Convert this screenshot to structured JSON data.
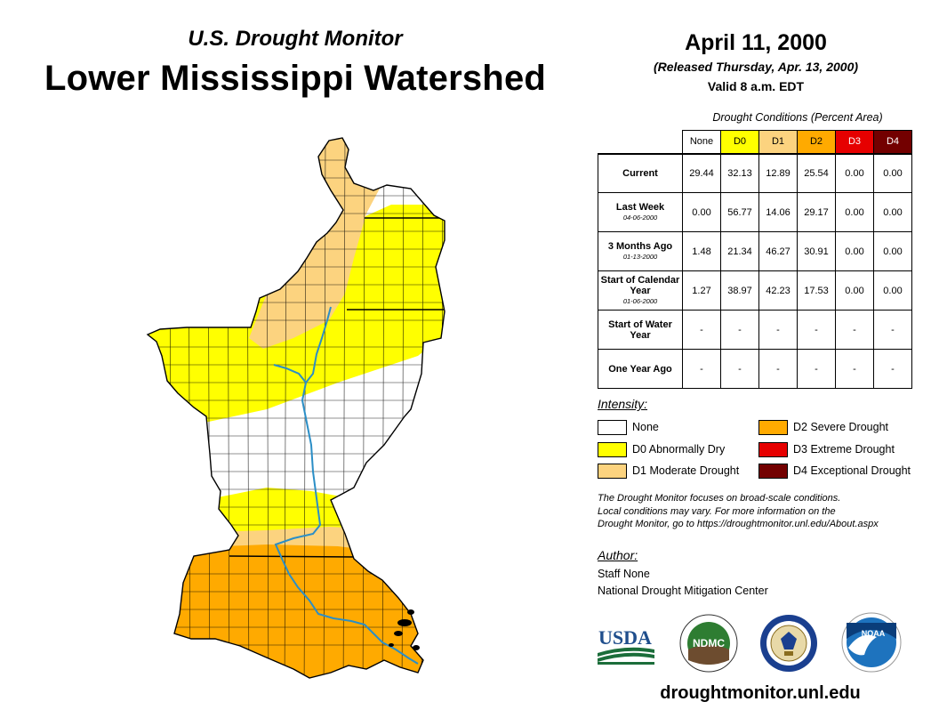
{
  "header": {
    "subtitle": "U.S. Drought Monitor",
    "title": "Lower Mississippi Watershed",
    "date": "April 11, 2000",
    "released": "(Released Thursday, Apr. 13, 2000)",
    "valid": "Valid 8 a.m. EDT"
  },
  "table": {
    "title": "Drought Conditions (Percent Area)",
    "columns": [
      {
        "label": "None",
        "color": "#ffffff",
        "text_color": "#000000"
      },
      {
        "label": "D0",
        "color": "#ffff00",
        "text_color": "#000000"
      },
      {
        "label": "D1",
        "color": "#fcd37f",
        "text_color": "#000000"
      },
      {
        "label": "D2",
        "color": "#ffaa00",
        "text_color": "#000000"
      },
      {
        "label": "D3",
        "color": "#e60000",
        "text_color": "#ffffff"
      },
      {
        "label": "D4",
        "color": "#730000",
        "text_color": "#ffffff"
      }
    ],
    "rows": [
      {
        "label": "Current",
        "date": "",
        "values": [
          "29.44",
          "32.13",
          "12.89",
          "25.54",
          "0.00",
          "0.00"
        ]
      },
      {
        "label": "Last Week",
        "date": "04-06-2000",
        "values": [
          "0.00",
          "56.77",
          "14.06",
          "29.17",
          "0.00",
          "0.00"
        ]
      },
      {
        "label": "3 Months Ago",
        "date": "01-13-2000",
        "values": [
          "1.48",
          "21.34",
          "46.27",
          "30.91",
          "0.00",
          "0.00"
        ]
      },
      {
        "label": "Start of Calendar Year",
        "date": "01-06-2000",
        "values": [
          "1.27",
          "38.97",
          "42.23",
          "17.53",
          "0.00",
          "0.00"
        ]
      },
      {
        "label": "Start of Water Year",
        "date": "",
        "values": [
          "-",
          "-",
          "-",
          "-",
          "-",
          "-"
        ]
      },
      {
        "label": "One Year Ago",
        "date": "",
        "values": [
          "-",
          "-",
          "-",
          "-",
          "-",
          "-"
        ]
      }
    ]
  },
  "legend": {
    "title": "Intensity:",
    "items": [
      {
        "label": "None",
        "color": "#ffffff"
      },
      {
        "label": "D0 Abnormally Dry",
        "color": "#ffff00"
      },
      {
        "label": "D1 Moderate Drought",
        "color": "#fcd37f"
      },
      {
        "label": "D2 Severe Drought",
        "color": "#ffaa00"
      },
      {
        "label": "D3 Extreme Drought",
        "color": "#e60000"
      },
      {
        "label": "D4 Exceptional Drought",
        "color": "#730000"
      }
    ]
  },
  "note": {
    "line1": "The Drought Monitor focuses on broad-scale conditions.",
    "line2": "Local conditions may vary. For more information on the",
    "line3": "Drought Monitor, go to https://droughtmonitor.unl.edu/About.aspx"
  },
  "author": {
    "title": "Author:",
    "name": "Staff None",
    "org": "National Drought Mitigation Center"
  },
  "logos": {
    "usda": "USDA",
    "ndmc": "NDMC",
    "noaa": "NOAA"
  },
  "website": "droughtmonitor.unl.edu"
}
